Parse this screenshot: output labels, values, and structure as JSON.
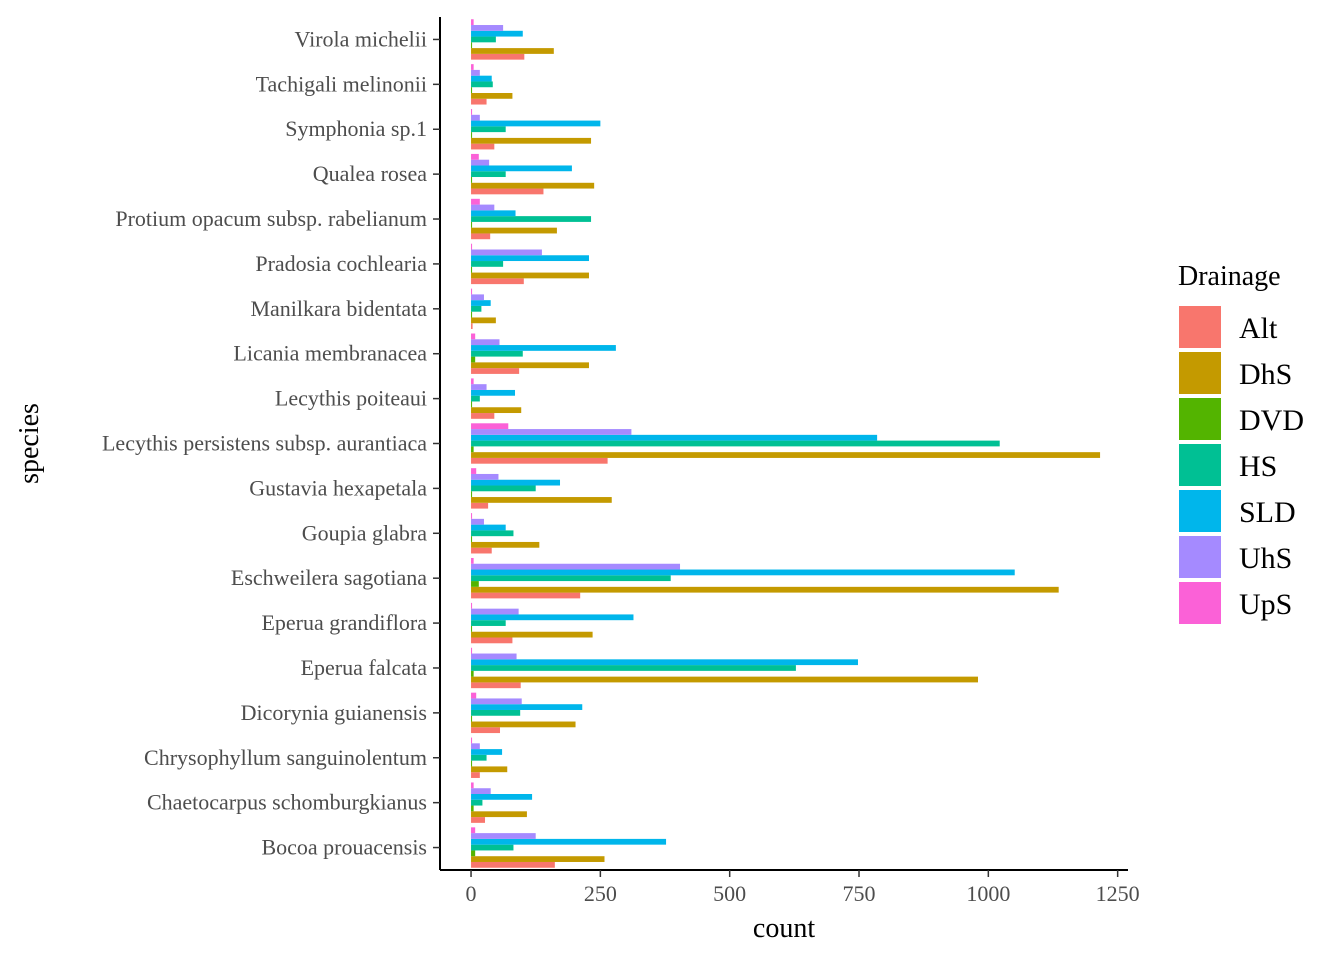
{
  "chart_data": {
    "type": "bar",
    "orientation": "horizontal",
    "xlabel": "count",
    "ylabel": "species",
    "xlim": [
      -60,
      1270
    ],
    "xticks": [
      0,
      250,
      500,
      750,
      1000,
      1250
    ],
    "xtick_labels": [
      "0",
      "250",
      "500",
      "750",
      "1000",
      "1250"
    ],
    "grid": false,
    "legend": {
      "title": "Drainage",
      "placement": "right"
    },
    "categories": [
      "Bocoa prouacensis",
      "Chaetocarpus schomburgkianus",
      "Chrysophyllum sanguinolentum",
      "Dicorynia guianensis",
      "Eperua falcata",
      "Eperua grandiflora",
      "Eschweilera sagotiana",
      "Goupia glabra",
      "Gustavia hexapetala",
      "Lecythis persistens subsp. aurantiaca",
      "Lecythis poiteaui",
      "Licania membranacea",
      "Manilkara bidentata",
      "Pradosia cochlearia",
      "Protium opacum subsp. rabelianum",
      "Qualea rosea",
      "Symphonia sp.1",
      "Tachigali melinonii",
      "Virola michelii"
    ],
    "series": [
      {
        "name": "Alt",
        "color": "#F8766D",
        "values": [
          162,
          27,
          17,
          56,
          96,
          80,
          211,
          40,
          33,
          264,
          45,
          93,
          3,
          102,
          37,
          140,
          45,
          30,
          103
        ]
      },
      {
        "name": "DhS",
        "color": "#C49A00",
        "values": [
          258,
          108,
          70,
          202,
          980,
          235,
          1136,
          132,
          272,
          1216,
          97,
          228,
          48,
          228,
          166,
          238,
          232,
          80,
          160
        ]
      },
      {
        "name": "DVD",
        "color": "#53B400",
        "values": [
          8,
          5,
          2,
          2,
          5,
          2,
          15,
          2,
          2,
          5,
          2,
          8,
          2,
          2,
          2,
          2,
          2,
          2,
          2
        ]
      },
      {
        "name": "HS",
        "color": "#00C094",
        "values": [
          82,
          22,
          30,
          95,
          628,
          67,
          386,
          82,
          125,
          1022,
          17,
          100,
          20,
          62,
          232,
          67,
          67,
          42,
          48
        ]
      },
      {
        "name": "SLD",
        "color": "#00B6EB",
        "values": [
          377,
          118,
          60,
          215,
          748,
          314,
          1051,
          67,
          172,
          785,
          85,
          280,
          38,
          228,
          86,
          195,
          250,
          40,
          100
        ]
      },
      {
        "name": "UhS",
        "color": "#A58AFF",
        "values": [
          125,
          38,
          17,
          98,
          88,
          92,
          404,
          25,
          53,
          310,
          30,
          55,
          25,
          137,
          45,
          35,
          17,
          17,
          62
        ]
      },
      {
        "name": "UpS",
        "color": "#FB61D7",
        "values": [
          8,
          5,
          2,
          10,
          2,
          2,
          5,
          2,
          10,
          72,
          5,
          8,
          2,
          2,
          17,
          15,
          2,
          5,
          5
        ]
      }
    ]
  }
}
